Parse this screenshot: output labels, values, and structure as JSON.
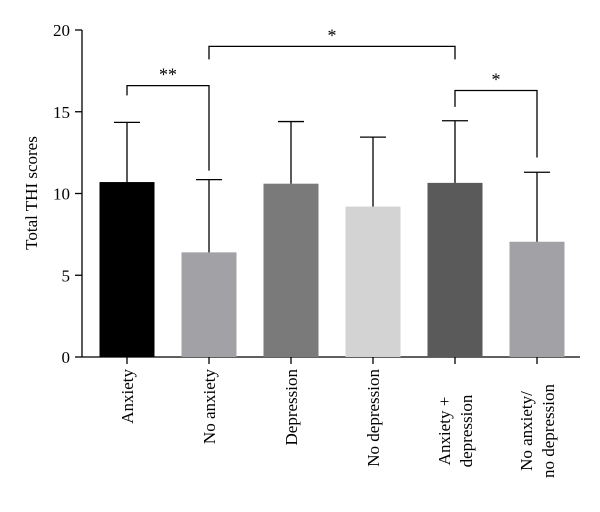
{
  "chart_data": {
    "type": "bar",
    "title": "",
    "xlabel": "",
    "ylabel": "Total THI scores",
    "ylim": [
      0,
      20
    ],
    "yticks": [
      "0",
      "5",
      "10",
      "15",
      "20"
    ],
    "grid": false,
    "legend": "none",
    "categories": [
      {
        "lines": [
          "Anxiety"
        ]
      },
      {
        "lines": [
          "No anxiety"
        ]
      },
      {
        "lines": [
          "Depression"
        ]
      },
      {
        "lines": [
          "No depression"
        ]
      },
      {
        "lines": [
          "Anxiety +",
          "depression"
        ]
      },
      {
        "lines": [
          "No anxiety/",
          "no depression"
        ]
      }
    ],
    "values": [
      10.7,
      6.4,
      10.6,
      9.2,
      10.65,
      7.05
    ],
    "error_upper": [
      14.35,
      10.85,
      14.4,
      13.45,
      14.45,
      11.3
    ],
    "bar_colors": [
      "#000000",
      "#a2a2a6",
      "#7a7a7a",
      "#d3d3d3",
      "#5a5a5a",
      "#a2a2a6"
    ],
    "significance": [
      {
        "from": 0,
        "to": 1,
        "label": "**",
        "level": 16.6,
        "drop_from": 16.0,
        "drop_to": 11.4
      },
      {
        "from": 1,
        "to": 4,
        "label": "*",
        "level": 19.0,
        "drop_from": 18.2,
        "drop_to": 18.2
      },
      {
        "from": 4,
        "to": 5,
        "label": "*",
        "level": 16.3,
        "drop_from": 15.3,
        "drop_to": 12.2
      }
    ]
  }
}
